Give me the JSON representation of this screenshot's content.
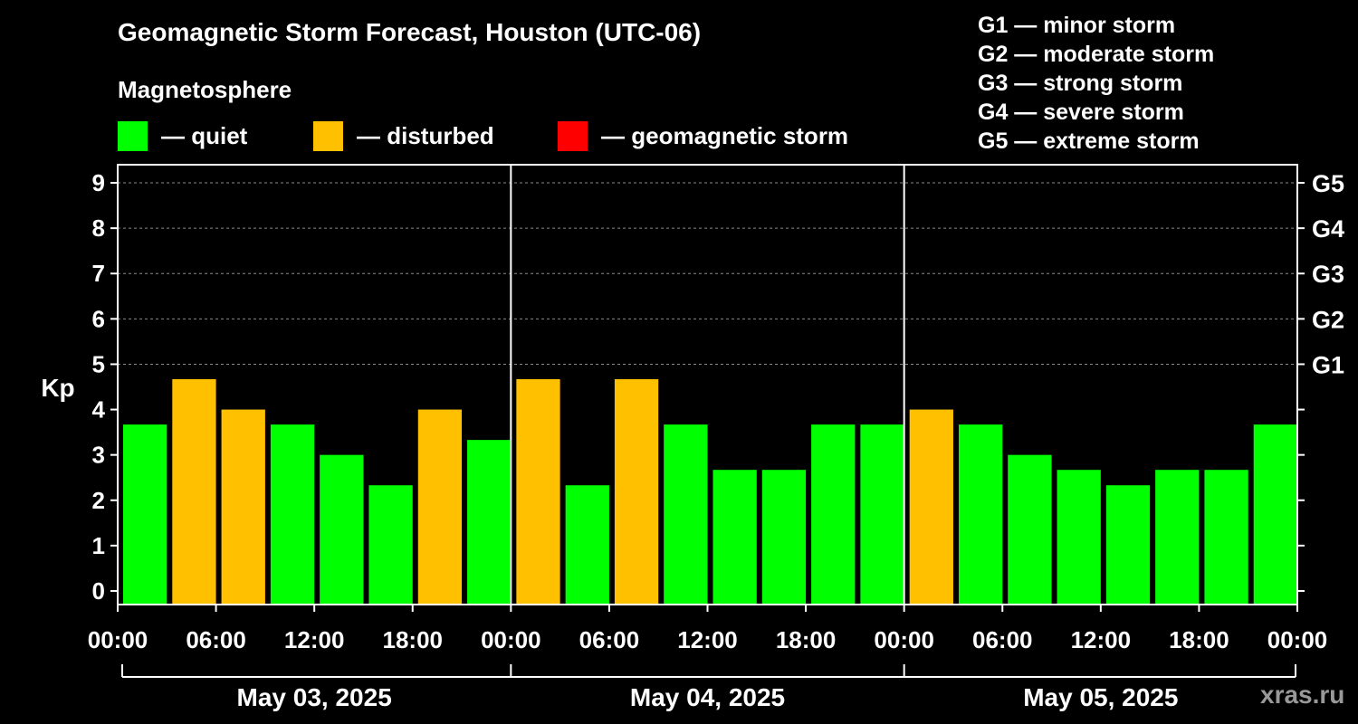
{
  "header": {
    "title": "Geomagnetic Storm Forecast, Houston (UTC-06)",
    "subtitle": "Magnetosphere"
  },
  "legend": {
    "items": [
      {
        "label": "— quiet",
        "color": "#00ff00"
      },
      {
        "label": "— disturbed",
        "color": "#ffc000"
      },
      {
        "label": "— geomagnetic storm",
        "color": "#ff0000"
      }
    ],
    "scale": [
      "G1 — minor storm",
      "G2 — moderate storm",
      "G3 — strong storm",
      "G4 — severe storm",
      "G5 — extreme storm"
    ]
  },
  "watermark": "xras.ru",
  "chart_data": {
    "type": "bar",
    "title": "Geomagnetic Storm Forecast, Houston (UTC-06)",
    "ylabel": "Kp",
    "ylim": [
      -0.3,
      9.4
    ],
    "yticks": [
      "0",
      "1",
      "2",
      "3",
      "4",
      "5",
      "6",
      "7",
      "8",
      "9"
    ],
    "right_axis": [
      {
        "level": 5,
        "label": "G1"
      },
      {
        "level": 6,
        "label": "G2"
      },
      {
        "level": 7,
        "label": "G3"
      },
      {
        "level": 8,
        "label": "G4"
      },
      {
        "level": 9,
        "label": "G5"
      }
    ],
    "xtick_labels": [
      "00:00",
      "06:00",
      "12:00",
      "18:00",
      "00:00",
      "06:00",
      "12:00",
      "18:00",
      "00:00",
      "06:00",
      "12:00",
      "18:00",
      "00:00"
    ],
    "days": [
      "May 03, 2025",
      "May 04, 2025",
      "May 05, 2025"
    ],
    "grid": true,
    "series": [
      {
        "name": "Kp",
        "values": [
          3.67,
          4.67,
          4.0,
          3.67,
          3.0,
          2.33,
          4.0,
          3.33,
          4.67,
          2.33,
          4.67,
          3.67,
          2.67,
          2.67,
          3.67,
          3.67,
          4.0,
          3.67,
          3.0,
          2.67,
          2.33,
          2.67,
          2.67,
          3.67
        ],
        "status": [
          "quiet",
          "disturbed",
          "disturbed",
          "quiet",
          "quiet",
          "quiet",
          "disturbed",
          "quiet",
          "disturbed",
          "quiet",
          "disturbed",
          "quiet",
          "quiet",
          "quiet",
          "quiet",
          "quiet",
          "disturbed",
          "quiet",
          "quiet",
          "quiet",
          "quiet",
          "quiet",
          "quiet",
          "quiet"
        ]
      }
    ],
    "colors": {
      "quiet": "#00ff00",
      "disturbed": "#ffc000",
      "storm": "#ff0000"
    }
  }
}
